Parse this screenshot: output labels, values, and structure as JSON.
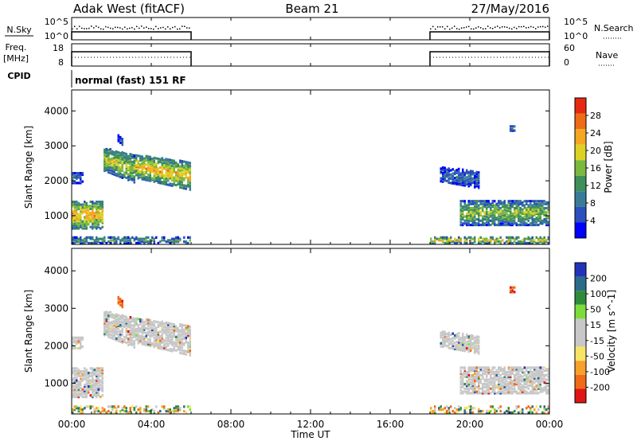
{
  "header": {
    "station": "Adak West (fitACF)",
    "beam": "Beam 21",
    "date": "27/May/2016"
  },
  "top_panels": {
    "nsky_label": "N.Sky",
    "nsky_ticks": [
      "10^5",
      "10^0"
    ],
    "nsearch_label": "N.Search",
    "nsearch_ticks": [
      "10^5",
      "10^0"
    ],
    "freq_label": "Freq.",
    "freq_unit": "[MHz]",
    "freq_ticks": [
      "18",
      "8"
    ],
    "nave_label": "Nave",
    "nave_ticks": [
      "60",
      "0"
    ],
    "cpid_label": "CPID",
    "cpid_value": "normal (fast) 151 RF"
  },
  "axes": {
    "xlabel": "Time UT",
    "ylabel": "Slant Range [km]",
    "yticks": [
      "4000",
      "3000",
      "2000",
      "1000"
    ],
    "xticks": [
      "00:00",
      "04:00",
      "08:00",
      "12:00",
      "16:00",
      "20:00",
      "00:00"
    ]
  },
  "colors": {
    "power_scale": [
      "#0000ff",
      "#2b4fbe",
      "#3a7c97",
      "#3f8f5a",
      "#7cb83d",
      "#dcd225",
      "#f5a623",
      "#ef6c17",
      "#e62a12"
    ],
    "velocity_scale": [
      "#2233bb",
      "#2b6c8a",
      "#2f8a3c",
      "#7cdd3a",
      "#c8c8c8",
      "#c8c8c8",
      "#f7e463",
      "#f7a02a",
      "#ef6c17",
      "#e01515"
    ]
  },
  "chart_data": [
    {
      "type": "heatmap",
      "title": "Power",
      "xlabel": "Time UT",
      "ylabel": "Slant Range [km]",
      "xlim": [
        0,
        24
      ],
      "ylim": [
        180,
        4600
      ],
      "colorbar_label": "Power [dB]",
      "colorbar_ticks": [
        "28",
        "24",
        "20",
        "16",
        "12",
        "8",
        "4"
      ],
      "colorbar_range": [
        0,
        30
      ],
      "data_intervals_hours": [
        [
          0,
          6
        ],
        [
          18,
          24
        ]
      ],
      "echo_regions": [
        {
          "start_hour": 0.0,
          "end_hour": 1.6,
          "range_km": [
            600,
            1400
          ],
          "peak_db": 22
        },
        {
          "start_hour": 0.0,
          "end_hour": 0.6,
          "range_km": [
            1900,
            2200
          ],
          "peak_db": 8
        },
        {
          "start_hour": 1.6,
          "end_hour": 3.2,
          "range_km": [
            1900,
            2700
          ],
          "peak_db": 18
        },
        {
          "start_hour": 3.2,
          "end_hour": 6.0,
          "range_km": [
            1700,
            2500
          ],
          "peak_db": 22
        },
        {
          "start_hour": 2.3,
          "end_hour": 2.6,
          "range_km": [
            3100,
            3300
          ],
          "peak_db": 6
        },
        {
          "start_hour": 18.5,
          "end_hour": 20.5,
          "range_km": [
            1950,
            2350
          ],
          "peak_db": 8
        },
        {
          "start_hour": 19.5,
          "end_hour": 24.0,
          "range_km": [
            700,
            1400
          ],
          "peak_db": 16
        },
        {
          "start_hour": 22.0,
          "end_hour": 22.3,
          "range_km": [
            3400,
            3550
          ],
          "peak_db": 10
        },
        {
          "start_hour": 18.0,
          "end_hour": 24.0,
          "range_km": [
            180,
            350
          ],
          "peak_db": 20
        },
        {
          "start_hour": 0.0,
          "end_hour": 6.0,
          "range_km": [
            180,
            350
          ],
          "peak_db": 12
        }
      ]
    },
    {
      "type": "heatmap",
      "title": "Velocity",
      "xlabel": "Time UT",
      "ylabel": "Slant Range [km]",
      "xlim": [
        0,
        24
      ],
      "ylim": [
        180,
        4600
      ],
      "colorbar_label": "Velocity [m s^-1]",
      "colorbar_ticks": [
        "200",
        "100",
        "50",
        "15",
        "-15",
        "-50",
        "-100",
        "-200"
      ],
      "colorbar_range": [
        -250,
        250
      ],
      "data_intervals_hours": [
        [
          0,
          6
        ],
        [
          18,
          24
        ]
      ],
      "echo_regions": [
        {
          "start_hour": 0.0,
          "end_hour": 1.6,
          "range_km": [
            600,
            1400
          ],
          "typical_velocity": 0
        },
        {
          "start_hour": 1.6,
          "end_hour": 3.2,
          "range_km": [
            1900,
            2700
          ],
          "typical_velocity": 0
        },
        {
          "start_hour": 3.2,
          "end_hour": 6.0,
          "range_km": [
            1700,
            2500
          ],
          "typical_velocity": 0
        },
        {
          "start_hour": 2.3,
          "end_hour": 2.6,
          "range_km": [
            3100,
            3300
          ],
          "typical_velocity": -150
        },
        {
          "start_hour": 18.5,
          "end_hour": 20.5,
          "range_km": [
            1950,
            2350
          ],
          "typical_velocity": 0
        },
        {
          "start_hour": 19.5,
          "end_hour": 24.0,
          "range_km": [
            700,
            1400
          ],
          "typical_velocity": 0
        },
        {
          "start_hour": 22.0,
          "end_hour": 22.3,
          "range_km": [
            3400,
            3550
          ],
          "typical_velocity": -200
        }
      ]
    }
  ]
}
